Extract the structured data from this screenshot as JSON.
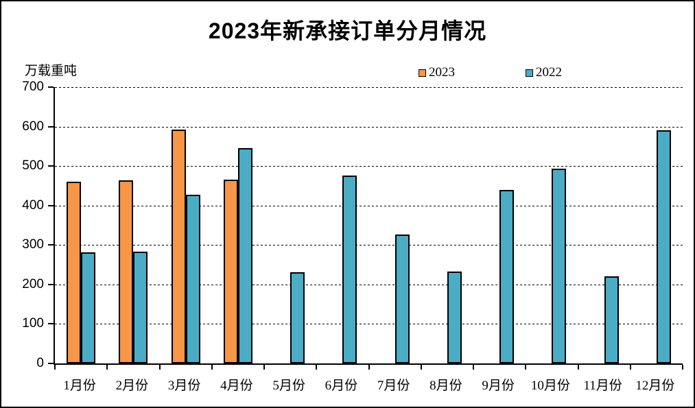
{
  "title": "2023年新承接订单分月情况",
  "unit_label": "万载重吨",
  "legend": [
    {
      "label": "2023",
      "color": "#F79646"
    },
    {
      "label": "2022",
      "color": "#4BACC6"
    }
  ],
  "colors": {
    "series_2023": "#F79646",
    "series_2022": "#4BACC6",
    "axis": "#000000",
    "background": "#FFFFFF"
  },
  "chart_data": {
    "type": "bar",
    "title": "2023年新承接订单分月情况",
    "xlabel": "",
    "ylabel": "万载重吨",
    "categories": [
      "1月份",
      "2月份",
      "3月份",
      "4月份",
      "5月份",
      "6月份",
      "7月份",
      "8月份",
      "9月份",
      "10月份",
      "11月份",
      "12月份"
    ],
    "series": [
      {
        "name": "2023",
        "color": "#F79646",
        "values": [
          461,
          463,
          593,
          466,
          null,
          null,
          null,
          null,
          null,
          null,
          null,
          null
        ]
      },
      {
        "name": "2022",
        "color": "#4BACC6",
        "values": [
          282,
          283,
          428,
          546,
          231,
          476,
          326,
          233,
          440,
          494,
          220,
          591
        ]
      }
    ],
    "ylim": [
      0,
      700
    ],
    "ytick_interval": 100,
    "yticks": [
      0,
      100,
      200,
      300,
      400,
      500,
      600,
      700
    ],
    "grid": "horizontal-dashed",
    "legend_position": "top"
  }
}
